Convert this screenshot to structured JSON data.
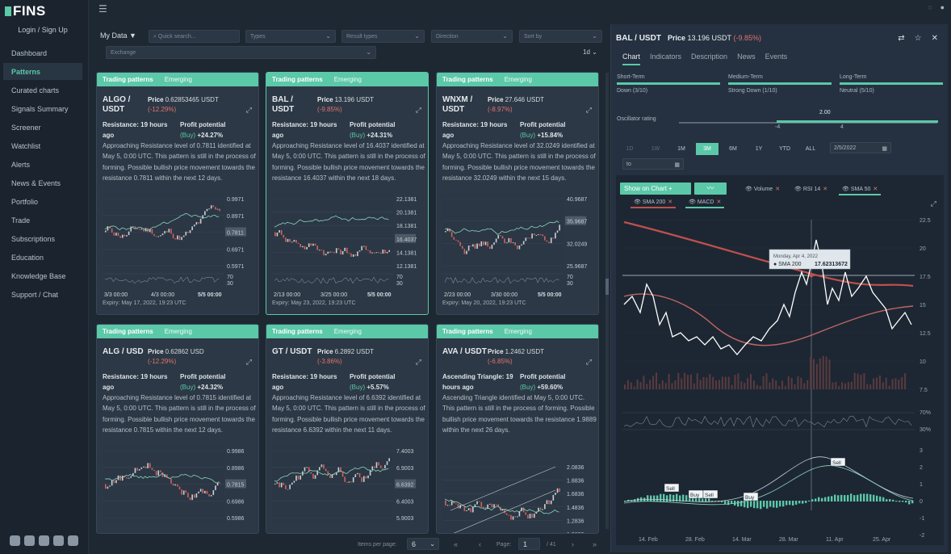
{
  "app": {
    "logo": "FINS",
    "login": "Login / Sign Up"
  },
  "sidebar": [
    {
      "label": "Dashboard"
    },
    {
      "label": "Patterns",
      "active": true
    },
    {
      "label": "Curated charts"
    },
    {
      "label": "Signals Summary"
    },
    {
      "label": "Screener"
    },
    {
      "label": "Watchlist"
    },
    {
      "label": "Alerts"
    },
    {
      "label": "News & Events"
    },
    {
      "label": "Portfolio"
    },
    {
      "label": "Trade"
    },
    {
      "label": "Subscriptions"
    },
    {
      "label": "Education"
    },
    {
      "label": "Knowledge Base"
    },
    {
      "label": "Support / Chat"
    }
  ],
  "filters": {
    "my_data": "My Data",
    "search_placeholder": "Quick search...",
    "types": "Types",
    "result_types": "Result types",
    "direction": "Direction",
    "sort_by": "Sort by",
    "exchange": "Exchange",
    "interval": "1d"
  },
  "cards": [
    {
      "header": "Trading patterns",
      "status": "Emerging",
      "symbol": "ALGO / USDT",
      "price_label": "Price",
      "price": "0.62853465 USDT",
      "change": "(-12.29%)",
      "resistance": "Resistance: 19 hours ago",
      "profit_label": "Profit potential",
      "profit_side": "(Buy)",
      "profit_pct": "+24.27%",
      "desc": "Approaching Resistance level of 0.7811 identified at May 5, 0:00 UTC. This pattern is still in the process of forming. Possible bullish price movement towards the resistance 0.7811 within the next 12 days.",
      "yticks": [
        "0.9971",
        "0.8971",
        "0.7811",
        "0.6971",
        "0.5971"
      ],
      "xticks": [
        "3/3 00:00",
        "4/3 00:00",
        "5/5 00:00"
      ],
      "rsi": [
        "70",
        "30"
      ],
      "expiry": "Expiry: May 17, 2022, 19:23 UTC"
    },
    {
      "header": "Trading patterns",
      "status": "Emerging",
      "symbol": "BAL / USDT",
      "price_label": "Price",
      "price": "13.196 USDT",
      "change": "(-9.85%)",
      "resistance": "Resistance: 19 hours ago",
      "profit_label": "Profit potential",
      "profit_side": "(Buy)",
      "profit_pct": "+24.31%",
      "desc": "Approaching Resistance level of 16.4037 identified at May 5, 0:00 UTC. This pattern is still in the process of forming. Possible bullish price movement towards the resistance 16.4037 within the next 18 days.",
      "yticks": [
        "22.1381",
        "20.1381",
        "18.1381",
        "16.4037",
        "14.1381",
        "12.1381"
      ],
      "xticks": [
        "2/13 00:00",
        "3/25 00:00",
        "5/5 00:00"
      ],
      "rsi": [
        "70",
        "30"
      ],
      "expiry": "Expiry: May 23, 2022, 19:23 UTC"
    },
    {
      "header": "Trading patterns",
      "status": "Emerging",
      "symbol": "WNXM / USDT",
      "price_label": "Price",
      "price": "27.646 USDT",
      "change": "(-8.97%)",
      "resistance": "Resistance: 19 hours ago",
      "profit_label": "Profit potential",
      "profit_side": "(Buy)",
      "profit_pct": "+15.84%",
      "desc": "Approaching Resistance level of 32.0249 identified at May 5, 0:00 UTC. This pattern is still in the process of forming. Possible bullish price movement towards the resistance 32.0249 within the next 15 days.",
      "yticks": [
        "40.9687",
        "35.9687",
        "32.0249",
        "25.9687"
      ],
      "xticks": [
        "2/23 00:00",
        "3/30 00:00",
        "5/5 00:00"
      ],
      "rsi": [
        "70",
        "30"
      ],
      "expiry": "Expiry: May 20, 2022, 19:23 UTC"
    },
    {
      "header": "Trading patterns",
      "status": "Emerging",
      "symbol": "ALG / USD",
      "price_label": "Price",
      "price": "0.62862 USD",
      "change": "(-12.29%)",
      "resistance": "Resistance: 19 hours ago",
      "profit_label": "Profit potential",
      "profit_side": "(Buy)",
      "profit_pct": "+24.32%",
      "desc": "Approaching Resistance level of 0.7815 identified at May 5, 0:00 UTC. This pattern is still in the process of forming. Possible bullish price movement towards the resistance 0.7815 within the next 12 days.",
      "yticks": [
        "0.9986",
        "0.8986",
        "0.7815",
        "0.6986",
        "0.5986"
      ],
      "xticks": [],
      "rsi": [],
      "expiry": ""
    },
    {
      "header": "Trading patterns",
      "status": "Emerging",
      "symbol": "GT / USDT",
      "price_label": "Price",
      "price": "6.2892 USDT",
      "change": "(-3.86%)",
      "resistance": "Resistance: 19 hours ago",
      "profit_label": "Profit potential",
      "profit_side": "(Buy)",
      "profit_pct": "+5.57%",
      "desc": "Approaching Resistance level of 6.6392 identified at May 5, 0:00 UTC. This pattern is still in the process of forming. Possible bullish price movement towards the resistance 6.6392 within the next 11 days.",
      "yticks": [
        "7.4003",
        "6.9003",
        "6.6392",
        "6.4003",
        "5.9003"
      ],
      "xticks": [],
      "rsi": [],
      "expiry": ""
    },
    {
      "header": "Trading patterns",
      "status": "Emerging",
      "symbol": "AVA / USDT",
      "price_label": "Price",
      "price": "1.2462 USDT",
      "change": "(-6.85%)",
      "resistance": "Ascending Triangle: 19 hours ago",
      "profit_label": "Profit potential",
      "profit_side": "(Buy)",
      "profit_pct": "+59.60%",
      "desc": "Ascending Triangle identified at May 5, 0:00 UTC. This pattern is still in the process of forming. Possible bullish price movement towards the resistance 1.9889 within the next 26 days.",
      "yticks": [
        "2.0836",
        "1.8836",
        "1.6836",
        "1.4836",
        "1.2836",
        "1.0836"
      ],
      "xticks": [],
      "rsi": [],
      "expiry": ""
    }
  ],
  "pager": {
    "items_per_page_label": "Items per page:",
    "items_per_page": "6",
    "page_label": "Page:",
    "page": "1",
    "total": "/ 41"
  },
  "detail": {
    "title": "BAL / USDT",
    "price_label": "Price",
    "price": "13.196 USDT",
    "change": "(-9.85%)",
    "tabs": [
      "Chart",
      "Indicators",
      "Description",
      "News",
      "Events"
    ],
    "gauges": [
      {
        "label": "Short-Term",
        "value": "Down (3/10)",
        "level": 0.3
      },
      {
        "label": "Medium-Term",
        "value": "Strong Down (1/10)",
        "level": 0.1
      },
      {
        "label": "Long-Term",
        "value": "Neutral (5/10)",
        "level": 0.5
      }
    ],
    "oscillator": {
      "label": "Oscillator rating",
      "value": "2.00",
      "left": "-4",
      "right": "4"
    },
    "periods": [
      "1D",
      "1W",
      "1M",
      "3M",
      "6M",
      "1Y",
      "YTD",
      "ALL"
    ],
    "active_period": "3M",
    "date_from": "2/5/2022",
    "date_to_placeholder": "to",
    "show_on_chart": "Show on Chart +",
    "indicators": [
      "Volume",
      "RSI 14",
      "SMA 50",
      "SMA 200",
      "MACD"
    ],
    "tooltip": {
      "date": "Monday, Apr 4, 2022",
      "label": "SMA 200",
      "value": "17.62313672"
    },
    "yticks": [
      "22.5",
      "20",
      "17.5",
      "15",
      "12.5",
      "10",
      "7.5"
    ],
    "rsi_levels": [
      "70%",
      "30%"
    ],
    "macd_ticks": [
      "3",
      "2",
      "1",
      "0",
      "-1",
      "-2"
    ],
    "xticks": [
      "14. Feb",
      "28. Feb",
      "14. Mar",
      "28. Mar",
      "11. Apr",
      "25. Apr"
    ],
    "signals": [
      "Sell",
      "Buy",
      "Sell",
      "Buy",
      "Sell"
    ]
  }
}
